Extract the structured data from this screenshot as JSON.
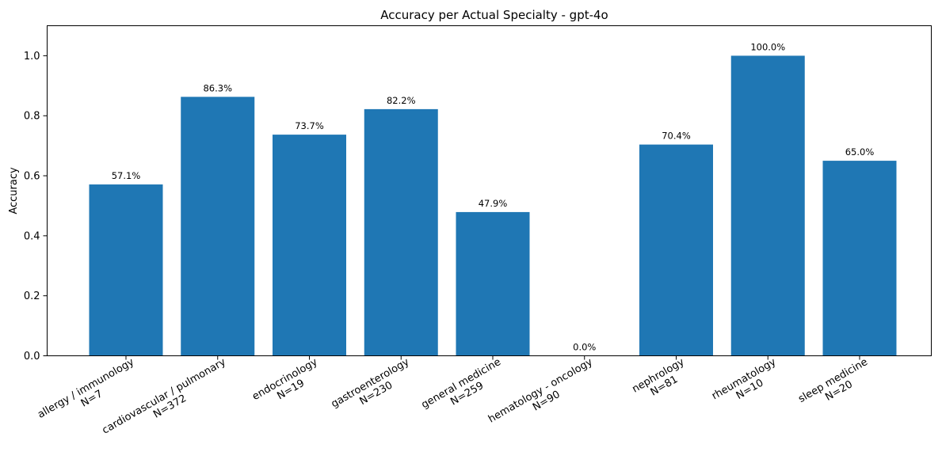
{
  "chart_data": {
    "type": "bar",
    "title": "Accuracy per Actual Specialty - gpt-4o",
    "xlabel": "",
    "ylabel": "Accuracy",
    "ylim": [
      0,
      1.1
    ],
    "yticks": [
      "0.0",
      "0.2",
      "0.4",
      "0.6",
      "0.8",
      "1.0"
    ],
    "ytick_values": [
      0,
      0.2,
      0.4,
      0.6,
      0.8,
      1.0
    ],
    "categories": [
      "allergy / immunology",
      "cardiovascular / pulmonary",
      "endocrinology",
      "gastroenterology",
      "general medicine",
      "hematology - oncology",
      "nephrology",
      "rheumatology",
      "sleep medicine"
    ],
    "counts": [
      "N=7",
      "N=372",
      "N=19",
      "N=230",
      "N=259",
      "N=90",
      "N=81",
      "N=10",
      "N=20"
    ],
    "values": [
      0.571,
      0.863,
      0.737,
      0.822,
      0.479,
      0.0,
      0.704,
      1.0,
      0.65
    ],
    "data_labels": [
      "57.1%",
      "86.3%",
      "73.7%",
      "82.2%",
      "47.9%",
      "0.0%",
      "70.4%",
      "100.0%",
      "65.0%"
    ],
    "bar_color": "#1f77b4",
    "grid": false,
    "legend": "none"
  }
}
